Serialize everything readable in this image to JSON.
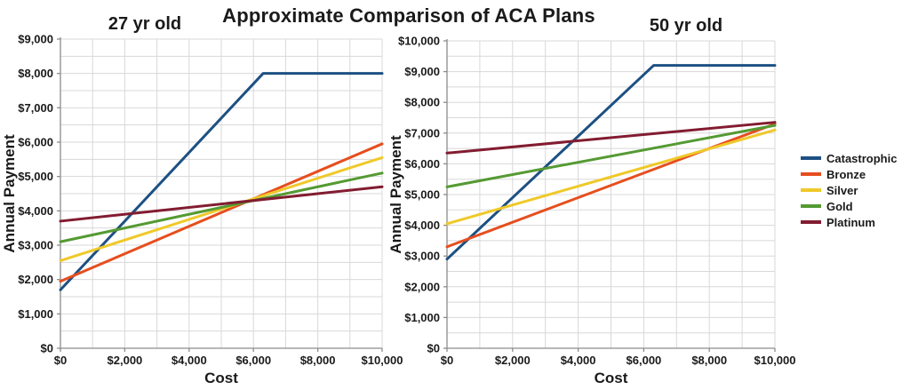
{
  "page": {
    "title": "Approximate Comparison of ACA Plans"
  },
  "colors": {
    "catastrophic": "#1D5083",
    "bronze": "#E64E1E",
    "silver": "#EFC929",
    "gold": "#549A32",
    "platinum": "#821C30",
    "gridline": "#D8D8D8",
    "axis": "#8C8C8C",
    "text": "#1a1a1a"
  },
  "legend": {
    "entries": [
      {
        "label": "Catastrophic",
        "color": "#1D5083"
      },
      {
        "label": "Bronze",
        "color": "#E64E1E"
      },
      {
        "label": "Silver",
        "color": "#EFC929"
      },
      {
        "label": "Gold",
        "color": "#549A32"
      },
      {
        "label": "Platinum",
        "color": "#821C30"
      }
    ]
  },
  "chart_data": [
    {
      "type": "line",
      "title": "27 yr old",
      "xlabel": "Cost",
      "ylabel": "Annual Payment",
      "xlim": [
        0,
        10000
      ],
      "ylim": [
        0,
        9000
      ],
      "x_label_step": 2000,
      "x_grid_step": 1000,
      "y_label_step": 1000,
      "y_grid_step": 500,
      "tick_format": "$#,###",
      "grid": true,
      "series": [
        {
          "name": "Catastrophic",
          "color": "#1D5083",
          "points": [
            [
              0,
              1700
            ],
            [
              6300,
              8000
            ],
            [
              10000,
              8000
            ]
          ]
        },
        {
          "name": "Bronze",
          "color": "#E64E1E",
          "points": [
            [
              0,
              1950
            ],
            [
              10000,
              5950
            ]
          ]
        },
        {
          "name": "Silver",
          "color": "#EFC929",
          "points": [
            [
              0,
              2550
            ],
            [
              10000,
              5550
            ]
          ]
        },
        {
          "name": "Gold",
          "color": "#549A32",
          "points": [
            [
              0,
              3100
            ],
            [
              10000,
              5100
            ]
          ]
        },
        {
          "name": "Platinum",
          "color": "#821C30",
          "points": [
            [
              0,
              3700
            ],
            [
              10000,
              4700
            ]
          ]
        }
      ]
    },
    {
      "type": "line",
      "title": "50 yr old",
      "xlabel": "Cost",
      "ylabel": "Annual Payment",
      "xlim": [
        0,
        10000
      ],
      "ylim": [
        0,
        10000
      ],
      "x_label_step": 2000,
      "x_grid_step": 1000,
      "y_label_step": 1000,
      "y_grid_step": 500,
      "tick_format": "$#,###",
      "grid": true,
      "series": [
        {
          "name": "Catastrophic",
          "color": "#1D5083",
          "points": [
            [
              0,
              2900
            ],
            [
              6300,
              9200
            ],
            [
              10000,
              9200
            ]
          ]
        },
        {
          "name": "Bronze",
          "color": "#E64E1E",
          "points": [
            [
              0,
              3300
            ],
            [
              10000,
              7300
            ]
          ]
        },
        {
          "name": "Silver",
          "color": "#EFC929",
          "points": [
            [
              0,
              4050
            ],
            [
              10000,
              7100
            ]
          ]
        },
        {
          "name": "Gold",
          "color": "#549A32",
          "points": [
            [
              0,
              5250
            ],
            [
              10000,
              7250
            ]
          ]
        },
        {
          "name": "Platinum",
          "color": "#821C30",
          "points": [
            [
              0,
              6350
            ],
            [
              10000,
              7350
            ]
          ]
        }
      ]
    }
  ]
}
